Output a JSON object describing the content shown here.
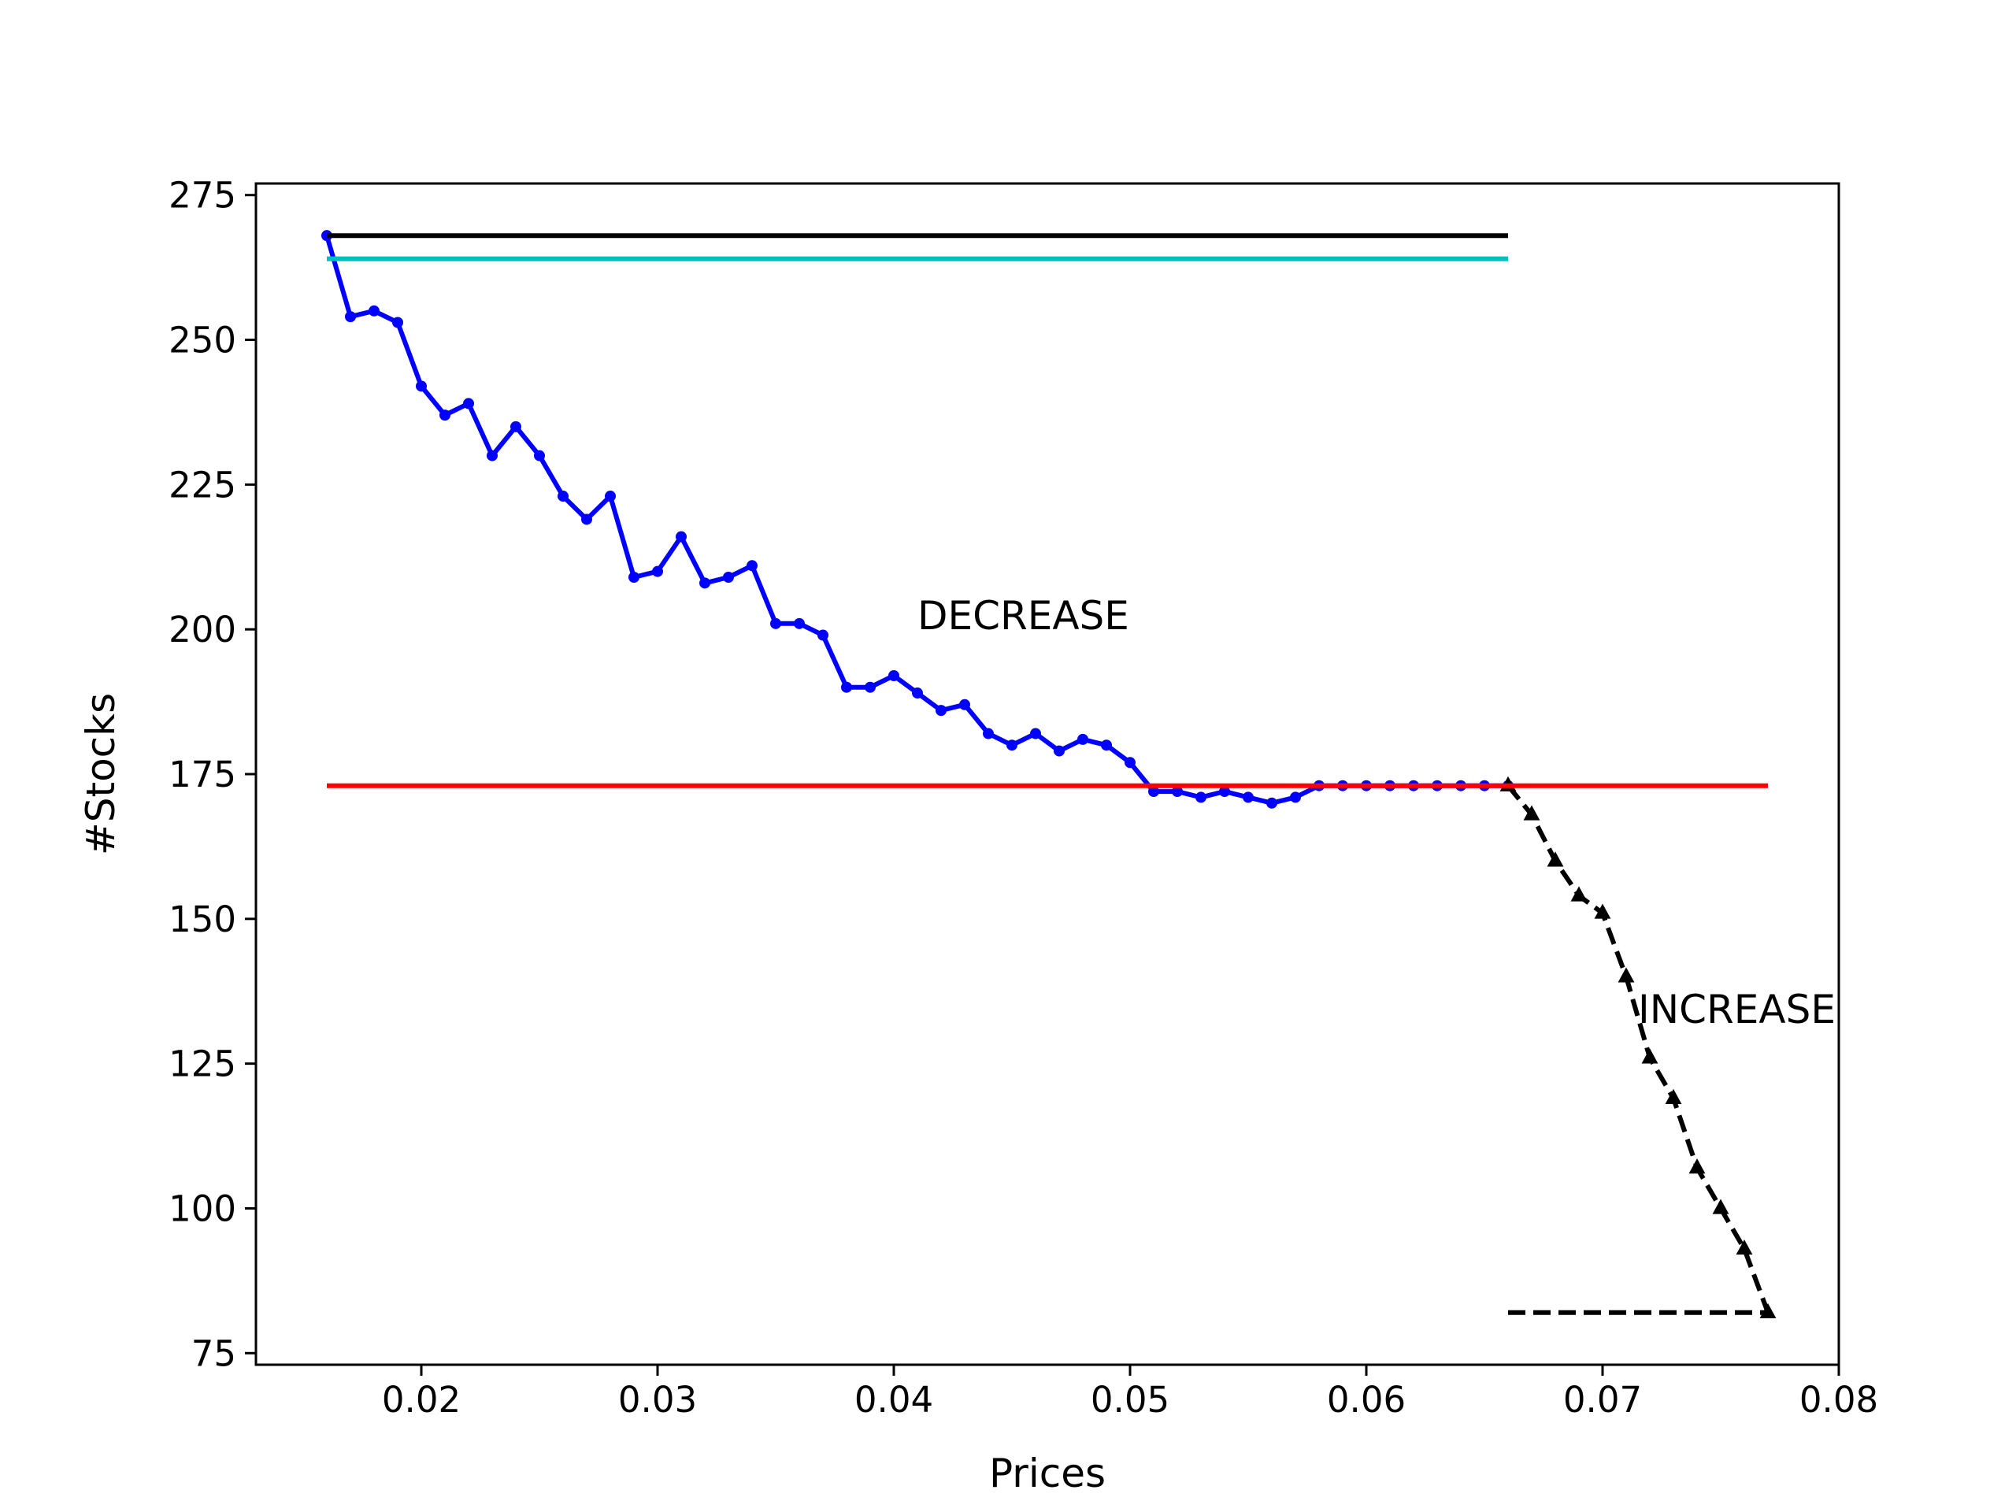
{
  "chart_data": {
    "type": "line",
    "title": "",
    "xlabel": "Prices",
    "ylabel": "#Stocks",
    "xlim": [
      0.013,
      0.08
    ],
    "ylim": [
      73,
      277
    ],
    "xticks": [
      0.02,
      0.03,
      0.04,
      0.05,
      0.06,
      0.07,
      0.08
    ],
    "xtick_labels": [
      "0.02",
      "0.03",
      "0.04",
      "0.05",
      "0.06",
      "0.07",
      "0.08"
    ],
    "yticks": [
      75,
      100,
      125,
      150,
      175,
      200,
      225,
      250,
      275
    ],
    "ytick_labels": [
      "75",
      "100",
      "125",
      "150",
      "175",
      "200",
      "225",
      "250",
      "275"
    ],
    "grid": false,
    "legend": "none",
    "series": [
      {
        "style": "solid",
        "marker": "circle",
        "color": "#0000ff",
        "x": [
          0.016,
          0.017,
          0.018,
          0.019,
          0.02,
          0.021,
          0.022,
          0.023,
          0.024,
          0.025,
          0.026,
          0.027,
          0.028,
          0.029,
          0.03,
          0.031,
          0.032,
          0.033,
          0.034,
          0.035,
          0.036,
          0.037,
          0.038,
          0.039,
          0.04,
          0.041,
          0.042,
          0.043,
          0.044,
          0.045,
          0.046,
          0.047,
          0.048,
          0.049,
          0.05,
          0.051,
          0.052,
          0.053,
          0.054,
          0.055,
          0.056,
          0.057,
          0.058,
          0.059,
          0.06,
          0.061,
          0.062,
          0.063,
          0.064,
          0.065,
          0.066
        ],
        "y": [
          268,
          254,
          255,
          253,
          242,
          237,
          239,
          230,
          235,
          230,
          223,
          219,
          223,
          209,
          210,
          216,
          208,
          209,
          211,
          201,
          201,
          199,
          190,
          190,
          192,
          189,
          186,
          187,
          182,
          180,
          182,
          179,
          181,
          180,
          177,
          172,
          172,
          171,
          172,
          171,
          170,
          171,
          173,
          173,
          173,
          173,
          173,
          173,
          173,
          173,
          173
        ]
      },
      {
        "style": "dashed",
        "marker": "triangle",
        "color": "#000000",
        "x": [
          0.066,
          0.067,
          0.068,
          0.069,
          0.07,
          0.071,
          0.072,
          0.073,
          0.074,
          0.075,
          0.076,
          0.077
        ],
        "y": [
          173,
          168,
          160,
          154,
          151,
          140,
          126,
          119,
          107,
          100,
          93,
          82
        ]
      },
      {
        "style": "dashed",
        "marker": "none",
        "color": "#000000",
        "x": [
          0.066,
          0.077
        ],
        "y": [
          82,
          82
        ]
      },
      {
        "style": "solid",
        "marker": "none",
        "color": "#000000",
        "x": [
          0.016,
          0.066
        ],
        "y": [
          268,
          268
        ]
      },
      {
        "style": "solid",
        "marker": "none",
        "color": "#00bfbf",
        "x": [
          0.016,
          0.066
        ],
        "y": [
          264,
          264
        ]
      },
      {
        "style": "solid",
        "marker": "none",
        "color": "#ff0000",
        "x": [
          0.016,
          0.077
        ],
        "y": [
          173,
          173
        ]
      }
    ],
    "annotations": [
      {
        "text": "DECREASE",
        "x": 0.041,
        "y": 200
      },
      {
        "text": "INCREASE",
        "x": 0.0715,
        "y": 132
      }
    ]
  }
}
